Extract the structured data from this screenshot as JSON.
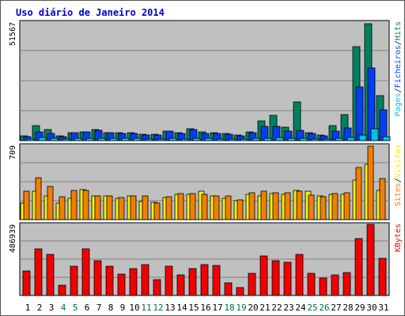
{
  "title": "Uso diário de Janeiro 2014",
  "colors": {
    "panel_bg": "#c0c0c0",
    "title": "#0000cc",
    "pages": "#00c0f0",
    "files": "#0040f0",
    "hits": "#008060",
    "visits": "#f0f000",
    "sites": "#f08000",
    "kbytes": "#f00000",
    "day_weekday": "#000000",
    "day_weekend": "#007050"
  },
  "chart_data": [
    {
      "type": "bar",
      "panel": "hits",
      "ymax_label": "51567",
      "ylim": [
        0,
        51567
      ],
      "side_label": [
        "Pages",
        "/",
        "Ficheiros",
        "/",
        "Hits"
      ],
      "categories": [
        "1",
        "2",
        "3",
        "4",
        "5",
        "6",
        "7",
        "8",
        "9",
        "10",
        "11",
        "12",
        "13",
        "14",
        "15",
        "16",
        "17",
        "18",
        "19",
        "20",
        "21",
        "22",
        "23",
        "24",
        "25",
        "26",
        "27",
        "28",
        "29",
        "30",
        "31"
      ],
      "weekend": [
        false,
        false,
        false,
        true,
        true,
        false,
        false,
        false,
        false,
        false,
        true,
        true,
        false,
        false,
        false,
        false,
        false,
        true,
        true,
        false,
        false,
        false,
        false,
        false,
        true,
        true,
        false,
        false,
        false,
        false,
        false
      ],
      "series": [
        {
          "name": "Hits",
          "color_key": "hits",
          "values": [
            2000,
            6500,
            4800,
            2000,
            3500,
            3900,
            4700,
            3500,
            3500,
            3500,
            2600,
            2800,
            4200,
            3600,
            5000,
            3700,
            3300,
            3000,
            2300,
            3800,
            8700,
            11000,
            6000,
            17000,
            3500,
            2500,
            6700,
            11500,
            41000,
            51000,
            19500
          ]
        },
        {
          "name": "Ficheiros",
          "color_key": "files",
          "values": [
            1800,
            3900,
            3000,
            1600,
            3300,
            3900,
            4500,
            3300,
            3100,
            3200,
            2300,
            2400,
            4000,
            3000,
            4700,
            3200,
            3000,
            2700,
            2100,
            3500,
            6300,
            6300,
            4100,
            4400,
            3100,
            2200,
            4000,
            5500,
            23500,
            31500,
            13500
          ]
        },
        {
          "name": "Pages",
          "color_key": "pages",
          "values": [
            800,
            1300,
            1000,
            700,
            900,
            1100,
            1200,
            900,
            900,
            900,
            700,
            700,
            1000,
            800,
            1100,
            900,
            800,
            700,
            600,
            900,
            1200,
            1300,
            1000,
            1100,
            800,
            700,
            1200,
            1300,
            2300,
            5200,
            1800
          ]
        }
      ]
    },
    {
      "type": "bar",
      "panel": "visits",
      "ymax_label": "709",
      "ylim": [
        0,
        709
      ],
      "side_label": [
        "Sites",
        "/",
        "Visitas"
      ],
      "categories": [
        "1",
        "2",
        "3",
        "4",
        "5",
        "6",
        "7",
        "8",
        "9",
        "10",
        "11",
        "12",
        "13",
        "14",
        "15",
        "16",
        "17",
        "18",
        "19",
        "20",
        "21",
        "22",
        "23",
        "24",
        "25",
        "26",
        "27",
        "28",
        "29",
        "30",
        "31"
      ],
      "series": [
        {
          "name": "Visitas",
          "color_key": "visits",
          "values": [
            160,
            270,
            230,
            160,
            200,
            290,
            230,
            230,
            200,
            225,
            170,
            165,
            210,
            245,
            245,
            275,
            230,
            205,
            180,
            240,
            230,
            250,
            245,
            280,
            275,
            225,
            240,
            245,
            380,
            525,
            280
          ]
        },
        {
          "name": "Sites",
          "color_key": "sites",
          "values": [
            275,
            400,
            315,
            220,
            280,
            280,
            225,
            225,
            210,
            225,
            225,
            160,
            215,
            250,
            250,
            245,
            225,
            230,
            190,
            260,
            270,
            260,
            260,
            270,
            235,
            215,
            250,
            255,
            495,
            705,
            390
          ]
        }
      ]
    },
    {
      "type": "bar",
      "panel": "kbytes",
      "ymax_label": "486939",
      "ylim": [
        0,
        486939
      ],
      "side_label": [
        "KBytes"
      ],
      "categories": [
        "1",
        "2",
        "3",
        "4",
        "5",
        "6",
        "7",
        "8",
        "9",
        "10",
        "11",
        "12",
        "13",
        "14",
        "15",
        "16",
        "17",
        "18",
        "19",
        "20",
        "21",
        "22",
        "23",
        "24",
        "25",
        "26",
        "27",
        "28",
        "29",
        "30",
        "31"
      ],
      "series": [
        {
          "name": "KBytes",
          "color_key": "kbytes",
          "values": [
            170000,
            320000,
            284000,
            72000,
            200000,
            320000,
            239000,
            200000,
            145000,
            186000,
            210000,
            110000,
            200000,
            143000,
            186000,
            212000,
            207000,
            87000,
            56000,
            149000,
            273000,
            239000,
            225000,
            280000,
            152000,
            120000,
            139000,
            158000,
            387000,
            486939,
            256000
          ]
        }
      ]
    }
  ]
}
